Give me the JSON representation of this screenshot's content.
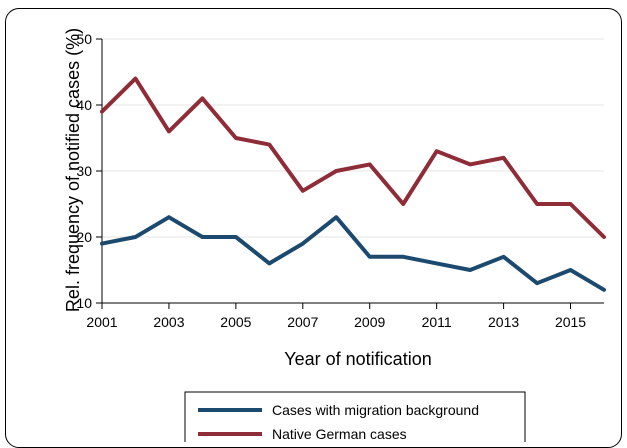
{
  "chart_data": {
    "type": "line",
    "x": [
      2001,
      2002,
      2003,
      2004,
      2005,
      2006,
      2007,
      2008,
      2009,
      2010,
      2011,
      2012,
      2013,
      2014,
      2015,
      2016
    ],
    "series": [
      {
        "name": "Cases with migration background",
        "color": "#1c4a6e",
        "values": [
          19,
          20,
          23,
          20,
          20,
          16,
          19,
          23,
          17,
          17,
          16,
          15,
          17,
          13,
          15,
          12
        ]
      },
      {
        "name": "Native German cases",
        "color": "#8e2c37",
        "values": [
          39,
          44,
          36,
          41,
          35,
          34,
          27,
          30,
          31,
          25,
          33,
          31,
          32,
          25,
          25,
          20
        ]
      }
    ],
    "xlabel": "Year of notification",
    "ylabel": "Rel. frequency of notified cases (%)",
    "x_ticks": [
      "2001",
      "2003",
      "2005",
      "2007",
      "2009",
      "2011",
      "2013",
      "2015"
    ],
    "y_ticks": [
      "10",
      "20",
      "30",
      "40",
      "50"
    ],
    "xlim": [
      2001,
      2016
    ],
    "ylim": [
      10,
      50
    ],
    "grid": "horizontal",
    "legend_position": "bottom"
  }
}
